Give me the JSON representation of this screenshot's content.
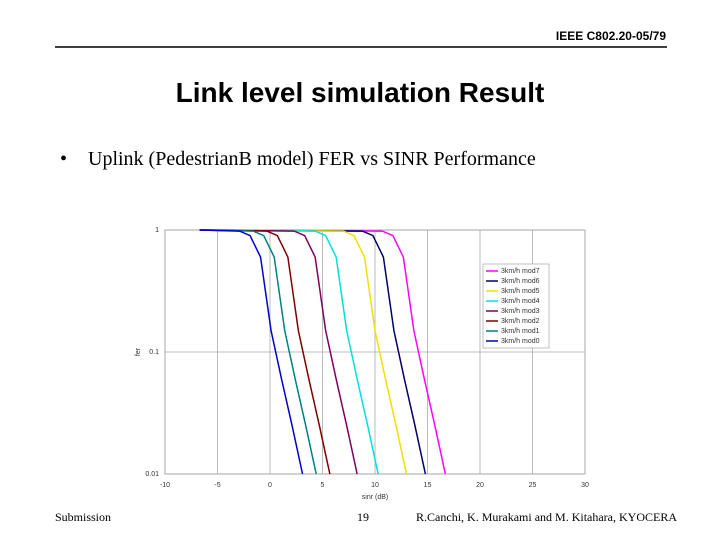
{
  "header": {
    "doc_id": "IEEE C802.20-05/79"
  },
  "slide_title": "Link level simulation Result",
  "bullet": "Uplink (PedestrianB model) FER vs SINR Performance",
  "footer": {
    "left": "Submission",
    "page": "19",
    "right": "R.Canchi, K. Murakami and M. Kitahara, KYOCERA"
  },
  "chart_data": {
    "type": "line",
    "x_label": "sinr (dB)",
    "y_label": "fer",
    "xlim": [
      -10,
      30
    ],
    "xticks": [
      -10,
      -5,
      0,
      5,
      10,
      15,
      20,
      25,
      30
    ],
    "ylim": [
      0.01,
      1
    ],
    "yticks": [
      0.01,
      0.1,
      1
    ],
    "log_y": true,
    "grid": true,
    "legend": "upper-right",
    "series": [
      {
        "name": "3km/h mod7",
        "color": "#ff00ff",
        "x": [
          -6.7,
          10.7,
          11.7,
          12.7,
          13.7,
          14.7,
          15.7,
          16.7
        ],
        "values": [
          1,
          0.98,
          0.9,
          0.6,
          0.15,
          0.06,
          0.025,
          0.01
        ]
      },
      {
        "name": "3km/h mod6",
        "color": "#000066",
        "x": [
          -6.7,
          8.8,
          9.8,
          10.8,
          11.8,
          12.8,
          13.8,
          14.8
        ],
        "values": [
          1,
          0.98,
          0.9,
          0.6,
          0.15,
          0.06,
          0.025,
          0.01
        ]
      },
      {
        "name": "3km/h mod5",
        "color": "#f0e000",
        "x": [
          -6.7,
          7.0,
          8.0,
          9.0,
          10.0,
          11.0,
          12.0,
          13.0
        ],
        "values": [
          1,
          0.98,
          0.9,
          0.6,
          0.15,
          0.06,
          0.025,
          0.01
        ]
      },
      {
        "name": "3km/h mod4",
        "color": "#00e0e0",
        "x": [
          -6.7,
          4.3,
          5.3,
          6.3,
          7.3,
          8.3,
          9.3,
          10.3
        ],
        "values": [
          1,
          0.98,
          0.9,
          0.6,
          0.15,
          0.06,
          0.025,
          0.01
        ]
      },
      {
        "name": "3km/h mod3",
        "color": "#800060",
        "x": [
          -6.7,
          2.3,
          3.3,
          4.3,
          5.3,
          6.3,
          7.3,
          8.3
        ],
        "values": [
          1,
          0.98,
          0.9,
          0.6,
          0.15,
          0.06,
          0.025,
          0.01
        ]
      },
      {
        "name": "3km/h mod2",
        "color": "#800000",
        "x": [
          -6.7,
          -0.3,
          0.7,
          1.7,
          2.7,
          3.7,
          4.7,
          5.7
        ],
        "values": [
          1,
          0.98,
          0.9,
          0.6,
          0.15,
          0.06,
          0.025,
          0.01
        ]
      },
      {
        "name": "3km/h mod1",
        "color": "#008080",
        "x": [
          -6.7,
          -1.6,
          -0.6,
          0.4,
          1.4,
          2.4,
          3.4,
          4.4
        ],
        "values": [
          1,
          0.98,
          0.9,
          0.6,
          0.15,
          0.06,
          0.025,
          0.01
        ]
      },
      {
        "name": "3km/h mod0",
        "color": "#0000cc",
        "x": [
          -6.7,
          -2.9,
          -1.9,
          -0.9,
          0.1,
          1.1,
          2.1,
          3.1
        ],
        "values": [
          1,
          0.98,
          0.9,
          0.6,
          0.15,
          0.06,
          0.025,
          0.01
        ]
      }
    ]
  }
}
